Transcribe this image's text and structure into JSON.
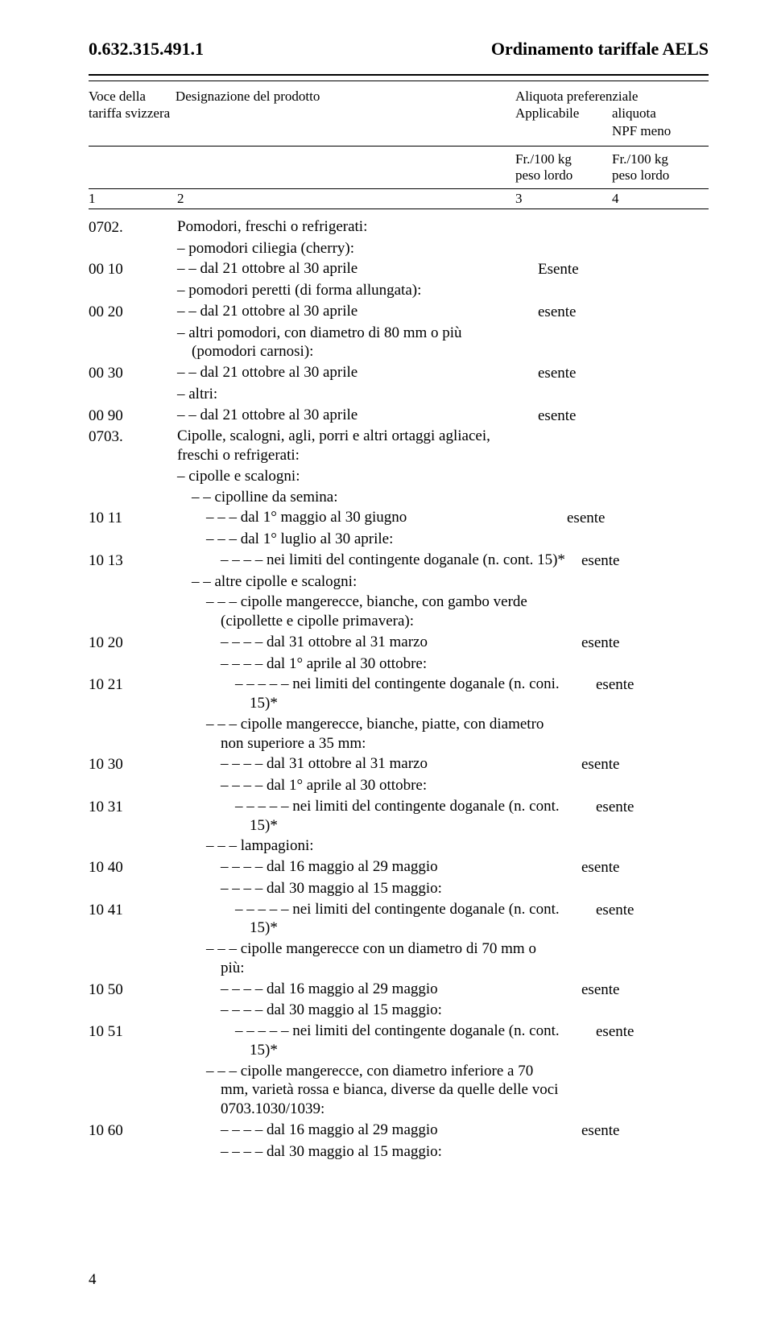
{
  "header": {
    "left": "0.632.315.491.1",
    "right": "Ordinamento tariffale AELS"
  },
  "columns": {
    "c1_line1": "Voce della",
    "c1_line2": "tariffa svizzera",
    "c2_line1": "Designazione del prodotto",
    "c34_line1": "Aliquota preferenziale",
    "c3_line2": "Applicabile",
    "c4_line2": "aliquota",
    "c4_line3": "NPF meno",
    "c3_unit": "Fr./100 kg",
    "c3_unit2": "peso lordo",
    "c4_unit": "Fr./100 kg",
    "c4_unit2": "peso lordo",
    "n1": "1",
    "n2": "2",
    "n3": "3",
    "n4": "4"
  },
  "rows": [
    {
      "code": "0702.",
      "desc": "Pomodori, freschi o refrigerati:",
      "indent": 0
    },
    {
      "desc": "– pomodori ciliegia (cherry):",
      "indent": 1
    },
    {
      "code": "00 10",
      "desc": "– – dal 21 ottobre al 30 aprile",
      "indent": 1,
      "val": "Esente"
    },
    {
      "desc": "– pomodori peretti (di forma allungata):",
      "indent": 1
    },
    {
      "code": "00 20",
      "desc": "– – dal 21 ottobre al 30 aprile",
      "indent": 1,
      "val": "esente"
    },
    {
      "desc": "– altri pomodori, con diametro di 80 mm o più (pomodori carnosi):",
      "indent": 1
    },
    {
      "code": "00 30",
      "desc": "– – dal 21 ottobre al 30 aprile",
      "indent": 1,
      "val": "esente"
    },
    {
      "desc": "– altri:",
      "indent": 1
    },
    {
      "code": "00 90",
      "desc": "– – dal 21 ottobre al 30 aprile",
      "indent": 1,
      "val": "esente"
    },
    {
      "code": "0703.",
      "desc": "Cipolle, scalogni, agli, porri e altri ortaggi agliacei, freschi o refrigerati:",
      "indent": 0
    },
    {
      "desc": "– cipolle e scalogni:",
      "indent": 1
    },
    {
      "desc": "– – cipolline da semina:",
      "indent": 2
    },
    {
      "code": "10 11",
      "desc": "– – – dal 1° maggio al 30 giugno",
      "indent": 3,
      "val": "esente"
    },
    {
      "desc": "– – – dal 1° luglio al 30 aprile:",
      "indent": 3
    },
    {
      "code": "10 13",
      "desc": "– – – – nei limiti del contingente doganale (n. cont. 15)*",
      "indent": 4,
      "val": "esente"
    },
    {
      "desc": "– – altre cipolle e scalogni:",
      "indent": 2
    },
    {
      "desc": "– – – cipolle mangerecce, bianche, con gambo verde (cipollette e cipolle primavera):",
      "indent": 3
    },
    {
      "code": "10 20",
      "desc": "– – – – dal 31 ottobre al 31 marzo",
      "indent": 4,
      "val": "esente"
    },
    {
      "desc": "– – – – dal 1° aprile al 30 ottobre:",
      "indent": 4
    },
    {
      "code": "10 21",
      "desc": "– – – – – nei limiti del contingente doganale (n. coni. 15)*",
      "indent": 5,
      "val": "esente"
    },
    {
      "desc": "– – – cipolle mangerecce, bianche, piatte, con diametro non superiore a 35 mm:",
      "indent": 3
    },
    {
      "code": "10 30",
      "desc": "– – – – dal 31 ottobre al 31 marzo",
      "indent": 4,
      "val": "esente"
    },
    {
      "desc": "– – – – dal 1° aprile al 30 ottobre:",
      "indent": 4
    },
    {
      "code": "10 31",
      "desc": "– – – – – nei limiti del contingente doganale (n. cont. 15)*",
      "indent": 5,
      "val": "esente"
    },
    {
      "desc": "– – – lampagioni:",
      "indent": 3
    },
    {
      "code": "10 40",
      "desc": "– – – – dal 16 maggio al 29 maggio",
      "indent": 4,
      "val": "esente"
    },
    {
      "desc": "– – – – dal 30 maggio al 15 maggio:",
      "indent": 4
    },
    {
      "code": "10 41",
      "desc": "– – – – – nei limiti del contingente doganale (n. cont. 15)*",
      "indent": 5,
      "val": "esente"
    },
    {
      "desc": "– – – cipolle mangerecce con un diametro di 70 mm o più:",
      "indent": 3
    },
    {
      "code": "10 50",
      "desc": "– – – – dal 16 maggio al 29 maggio",
      "indent": 4,
      "val": "esente"
    },
    {
      "desc": "– – – – dal 30 maggio al 15 maggio:",
      "indent": 4
    },
    {
      "code": "10 51",
      "desc": "– – – – – nei limiti del contingente doganale (n. cont. 15)*",
      "indent": 5,
      "val": "esente"
    },
    {
      "desc": "– – – cipolle mangerecce, con diametro inferiore a 70 mm, varietà rossa e bianca, diverse da quelle delle voci 0703.1030/1039:",
      "indent": 3
    },
    {
      "code": "10 60",
      "desc": "– – – – dal 16 maggio al 29 maggio",
      "indent": 4,
      "val": "esente"
    },
    {
      "desc": "– – – – dal 30 maggio al 15 maggio:",
      "indent": 4
    }
  ],
  "pageNumber": "4"
}
